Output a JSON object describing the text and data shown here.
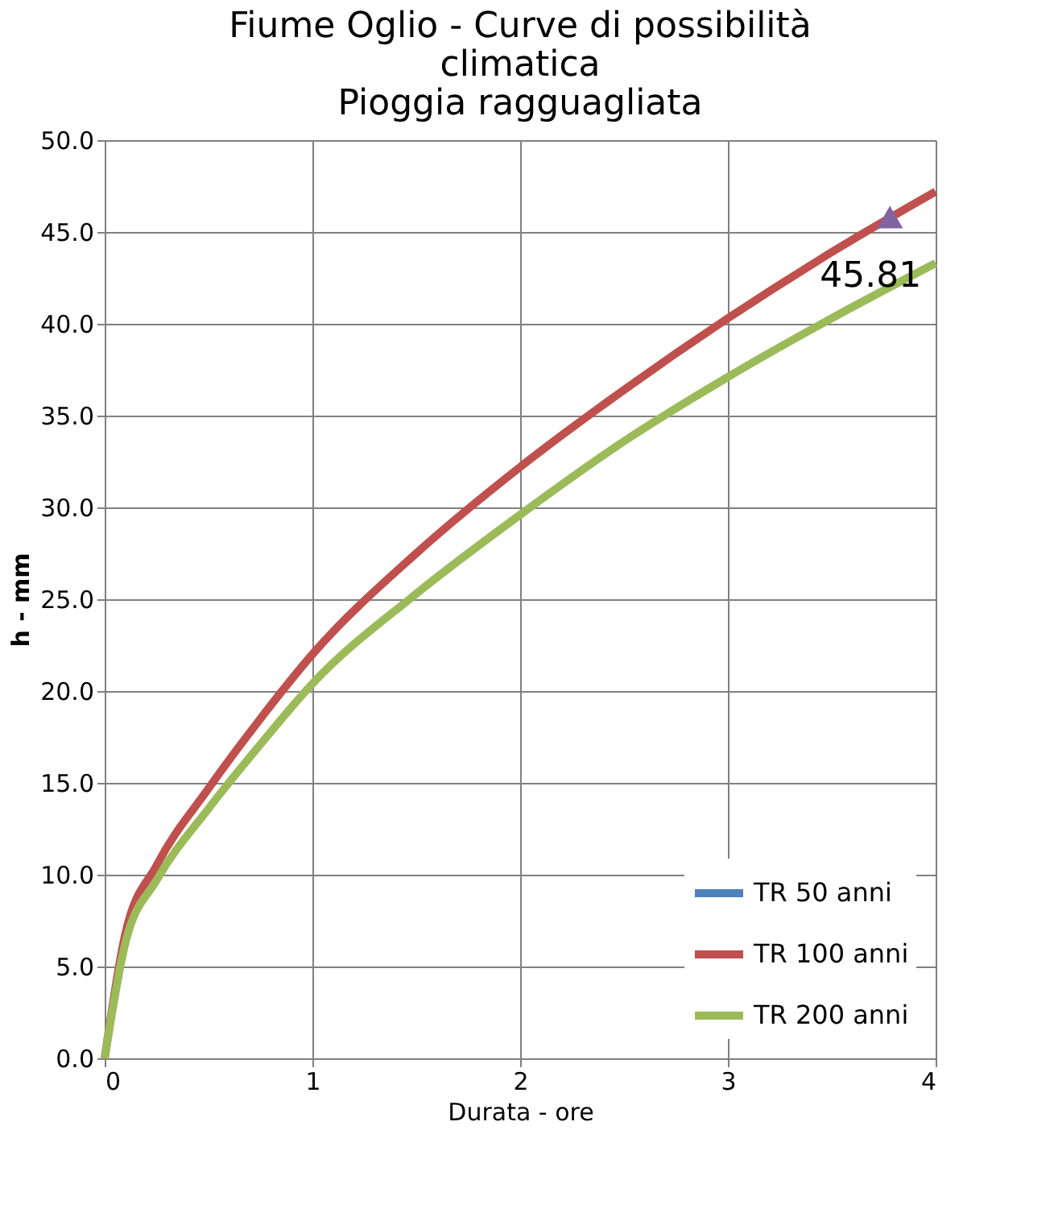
{
  "chart_data": {
    "type": "line",
    "title": [
      "Fiume Oglio - Curve di possibilità",
      "climatica",
      "Pioggia ragguagliata"
    ],
    "xlabel": "Durata - ore",
    "ylabel": "h - mm",
    "xlim": [
      0,
      4
    ],
    "xticks": [
      0,
      1,
      2,
      3,
      4
    ],
    "ylim": [
      0,
      50
    ],
    "yticks": [
      {
        "value": 0,
        "label": "0.0"
      },
      {
        "value": 5,
        "label": "5.0"
      },
      {
        "value": 10,
        "label": "10.0"
      },
      {
        "value": 15,
        "label": "15.0"
      },
      {
        "value": 20,
        "label": "20.0"
      },
      {
        "value": 25,
        "label": "25.0"
      },
      {
        "value": 30,
        "label": "30.0"
      },
      {
        "value": 35,
        "label": "35.0"
      },
      {
        "value": 40,
        "label": "40.0"
      },
      {
        "value": 45,
        "label": "45.0"
      },
      {
        "value": 50,
        "label": "50.0"
      }
    ],
    "grid": true,
    "legend": "bottom right",
    "marker": "none",
    "line_style": "solid",
    "x": [
      0,
      0.1,
      0.25,
      0.5,
      0.75,
      1,
      1.5,
      2,
      2.5,
      3,
      3.5,
      4
    ],
    "series": [
      {
        "name": "TR 50 anni",
        "color": "#4f81bd",
        "values": [
          null,
          null,
          null,
          null,
          null,
          null,
          null,
          null,
          null,
          null,
          null,
          null
        ]
      },
      {
        "name": "TR 100 anni",
        "color": "#c0504d",
        "values": [
          0,
          6.8,
          10.5,
          14.7,
          18.5,
          22.0,
          27.5,
          32.2,
          36.4,
          40.3,
          43.9,
          47.2
        ]
      },
      {
        "name": "TR 200 anni",
        "color": "#9bbb59",
        "values": [
          0,
          6.3,
          9.7,
          13.6,
          17.1,
          20.4,
          25.3,
          29.6,
          33.6,
          37.1,
          40.3,
          43.3
        ]
      },
      {
        "type": "scatter",
        "marker": "triangle",
        "color": "#8064a2",
        "x": [
          3.78
        ],
        "values": [
          45.81
        ],
        "data_labels": true
      }
    ]
  }
}
